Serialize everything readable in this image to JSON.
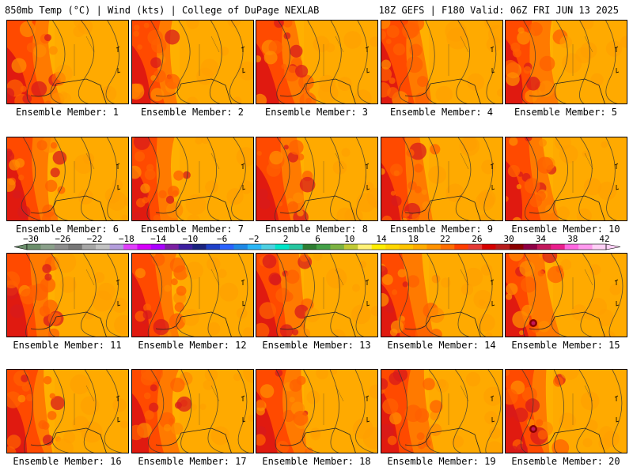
{
  "header": {
    "left": "850mb Temp (°C) | Wind (kts) | College of DuPage NEXLAB",
    "right": "18Z GEFS | F180 Valid: 06Z FRI JUN 13 2025"
  },
  "panels": [
    {
      "label": "Ensemble Member: 1"
    },
    {
      "label": "Ensemble Member: 2"
    },
    {
      "label": "Ensemble Member: 3"
    },
    {
      "label": "Ensemble Member: 4"
    },
    {
      "label": "Ensemble Member: 5"
    },
    {
      "label": "Ensemble Member: 6"
    },
    {
      "label": "Ensemble Member: 7"
    },
    {
      "label": "Ensemble Member: 8"
    },
    {
      "label": "Ensemble Member: 9"
    },
    {
      "label": "Ensemble Member: 10"
    },
    {
      "label": "Ensemble Member: 11"
    },
    {
      "label": "Ensemble Member: 12"
    },
    {
      "label": "Ensemble Member: 13"
    },
    {
      "label": "Ensemble Member: 14"
    },
    {
      "label": "Ensemble Member: 15"
    },
    {
      "label": "Ensemble Member: 16"
    },
    {
      "label": "Ensemble Member: 17"
    },
    {
      "label": "Ensemble Member: 18"
    },
    {
      "label": "Ensemble Member: 19"
    },
    {
      "label": "Ensemble Member: 20"
    }
  ],
  "colorbar": {
    "tick_labels": [
      "−30",
      "−26",
      "−22",
      "−18",
      "−14",
      "−10",
      "−6",
      "−2",
      "2",
      "6",
      "10",
      "14",
      "18",
      "22",
      "26",
      "30",
      "34",
      "38",
      "42"
    ],
    "colors": [
      "#6b8e6b",
      "#8aa08a",
      "#8c8c8c",
      "#777777",
      "#a6a6a6",
      "#c2c2c2",
      "#b39ddb",
      "#e040fb",
      "#d500f9",
      "#aa00ff",
      "#7b1fa2",
      "#3d1fa0",
      "#1a237e",
      "#1e40c8",
      "#2962ff",
      "#1e88e5",
      "#29b6f6",
      "#4dd0e1",
      "#00e5c8",
      "#26c6a0",
      "#2e7d32",
      "#43a047",
      "#7cb342",
      "#c0ca33",
      "#fff176",
      "#ffee00",
      "#ffd600",
      "#ffc400",
      "#ffab00",
      "#ff9100",
      "#ff6d00",
      "#ff3d00",
      "#e53935",
      "#d50000",
      "#b71c1c",
      "#8b0000",
      "#8e0045",
      "#c2185b",
      "#e91e8c",
      "#ff66e0",
      "#ff99ee",
      "#ffd0f6"
    ]
  }
}
